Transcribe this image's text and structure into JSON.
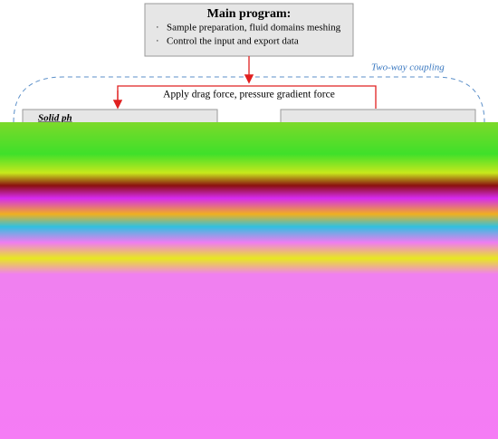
{
  "main": {
    "title": "Main program:",
    "items": [
      "Sample preparation, fluid domains meshing",
      "Control the input and export data"
    ]
  },
  "coupling_label": "Two-way coupling",
  "exchange_label": "Apply drag force, pressure gradient force",
  "solid_box": {
    "title": "Solid ph"
  }
}
